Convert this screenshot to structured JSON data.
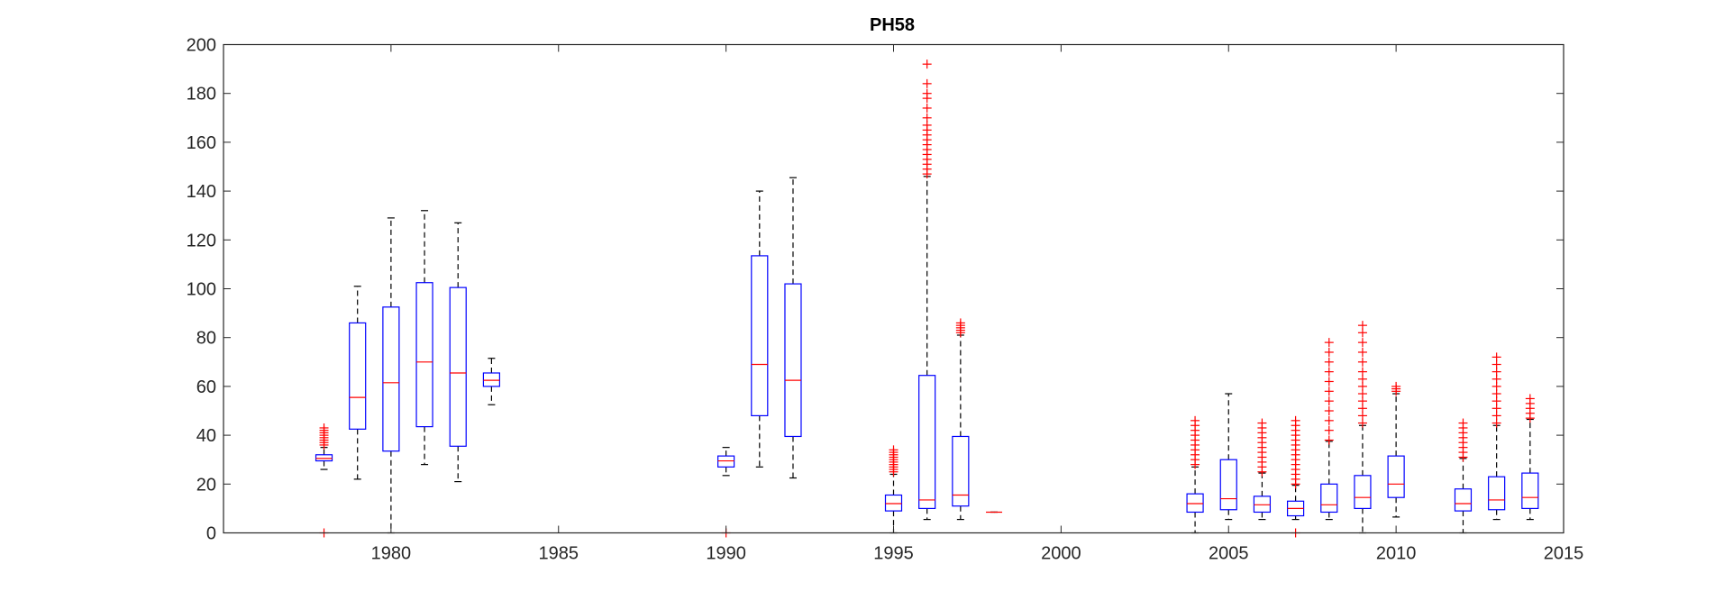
{
  "chart_data": {
    "type": "box",
    "title": "PH58",
    "xlabel": "",
    "ylabel": "",
    "xlim": [
      1975,
      2015
    ],
    "ylim": [
      0,
      200
    ],
    "xticks": [
      1980,
      1985,
      1990,
      1995,
      2000,
      2005,
      2010,
      2015
    ],
    "yticks": [
      0,
      20,
      40,
      60,
      80,
      100,
      120,
      140,
      160,
      180,
      200
    ],
    "grid": false,
    "colors": {
      "box": "#0000ff",
      "median": "#ff0000",
      "whisker": "#000000",
      "outlier": "#ff0000",
      "axis": "#262626"
    },
    "boxes": [
      {
        "x": 1978,
        "q1": 29.5,
        "median": 30.5,
        "q3": 32,
        "whisker_low": 26,
        "whisker_high": 35,
        "outliers": [
          0,
          36,
          37,
          38,
          39,
          40,
          41,
          42,
          43
        ]
      },
      {
        "x": 1979,
        "q1": 42.5,
        "median": 55.5,
        "q3": 86,
        "whisker_low": 22,
        "whisker_high": 101,
        "outliers": []
      },
      {
        "x": 1980,
        "q1": 33.5,
        "median": 61.5,
        "q3": 92.5,
        "whisker_low": 0,
        "whisker_high": 129,
        "outliers": []
      },
      {
        "x": 1981,
        "q1": 43.5,
        "median": 70,
        "q3": 102.5,
        "whisker_low": 28,
        "whisker_high": 132,
        "outliers": []
      },
      {
        "x": 1982,
        "q1": 35.5,
        "median": 65.5,
        "q3": 100.5,
        "whisker_low": 21,
        "whisker_high": 127,
        "outliers": []
      },
      {
        "x": 1983,
        "q1": 60,
        "median": 62.5,
        "q3": 65.5,
        "whisker_low": 52.5,
        "whisker_high": 71.5,
        "outliers": []
      },
      {
        "x": 1990,
        "q1": 27,
        "median": 29.5,
        "q3": 31.5,
        "whisker_low": 23.5,
        "whisker_high": 35,
        "outliers": [
          0
        ]
      },
      {
        "x": 1991,
        "q1": 48,
        "median": 69,
        "q3": 113.5,
        "whisker_low": 27,
        "whisker_high": 140,
        "outliers": []
      },
      {
        "x": 1992,
        "q1": 39.5,
        "median": 62.5,
        "q3": 102,
        "whisker_low": 22.5,
        "whisker_high": 145.5,
        "outliers": []
      },
      {
        "x": 1995,
        "q1": 9,
        "median": 12,
        "q3": 15.5,
        "whisker_low": 0,
        "whisker_high": 24,
        "outliers": [
          25,
          26,
          27,
          28,
          29,
          30,
          31,
          32,
          33,
          34
        ]
      },
      {
        "x": 1996,
        "q1": 10,
        "median": 13.5,
        "q3": 64.5,
        "whisker_low": 5.5,
        "whisker_high": 146,
        "outliers": [
          147,
          149,
          151,
          153,
          155,
          157,
          159,
          161,
          163,
          165,
          167,
          170,
          174,
          178,
          180,
          184,
          192
        ]
      },
      {
        "x": 1997,
        "q1": 11,
        "median": 15.5,
        "q3": 39.5,
        "whisker_low": 5.5,
        "whisker_high": 81,
        "outliers": [
          82,
          83,
          84,
          85,
          86
        ]
      },
      {
        "x": 1998,
        "q1": 8.5,
        "median": 8.5,
        "q3": 8.5,
        "whisker_low": 8.5,
        "whisker_high": 8.5,
        "outliers": []
      },
      {
        "x": 2004,
        "q1": 8.5,
        "median": 12,
        "q3": 16,
        "whisker_low": 0,
        "whisker_high": 27,
        "outliers": [
          28,
          30,
          32,
          34,
          36,
          38,
          40,
          42,
          44,
          46
        ]
      },
      {
        "x": 2005,
        "q1": 9.5,
        "median": 14,
        "q3": 30,
        "whisker_low": 5.5,
        "whisker_high": 57,
        "outliers": []
      },
      {
        "x": 2006,
        "q1": 8.5,
        "median": 11.5,
        "q3": 15,
        "whisker_low": 5.5,
        "whisker_high": 24.5,
        "outliers": [
          25,
          27,
          29,
          31,
          33,
          35,
          37,
          39,
          41,
          43,
          45
        ]
      },
      {
        "x": 2007,
        "q1": 7,
        "median": 10,
        "q3": 13,
        "whisker_low": 5.5,
        "whisker_high": 19.5,
        "outliers": [
          0,
          20,
          22,
          24,
          26,
          28,
          30,
          32,
          34,
          36,
          38,
          40,
          42,
          44,
          46
        ]
      },
      {
        "x": 2008,
        "q1": 8.5,
        "median": 11.5,
        "q3": 20,
        "whisker_low": 5.5,
        "whisker_high": 37.5,
        "outliers": [
          38,
          42,
          46,
          50,
          54,
          58,
          62,
          66,
          70,
          74,
          78
        ]
      },
      {
        "x": 2009,
        "q1": 10,
        "median": 14.5,
        "q3": 23.5,
        "whisker_low": 0,
        "whisker_high": 44,
        "outliers": [
          45,
          48,
          51,
          54,
          57,
          60,
          63,
          66,
          70,
          74,
          78,
          82,
          85
        ]
      },
      {
        "x": 2010,
        "q1": 14.5,
        "median": 20,
        "q3": 31.5,
        "whisker_low": 6.5,
        "whisker_high": 57,
        "outliers": [
          58,
          59,
          60
        ]
      },
      {
        "x": 2012,
        "q1": 9,
        "median": 12,
        "q3": 18,
        "whisker_low": 0,
        "whisker_high": 30.5,
        "outliers": [
          31,
          33,
          35,
          37,
          39,
          41,
          43,
          45
        ]
      },
      {
        "x": 2013,
        "q1": 9.5,
        "median": 13.5,
        "q3": 23,
        "whisker_low": 5.5,
        "whisker_high": 44,
        "outliers": [
          45,
          48,
          51,
          54,
          57,
          60,
          63,
          66,
          69,
          72
        ]
      },
      {
        "x": 2014,
        "q1": 10,
        "median": 14.5,
        "q3": 24.5,
        "whisker_low": 5.5,
        "whisker_high": 46.5,
        "outliers": [
          47,
          49,
          51,
          53,
          55
        ]
      }
    ]
  }
}
